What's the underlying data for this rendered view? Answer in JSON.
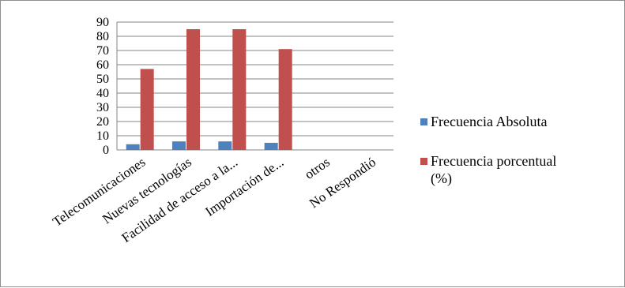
{
  "chart_data": {
    "type": "bar",
    "categories": [
      "Telecomunicaciones",
      "Nuevas tecnologías",
      "Facilidad de acceso a la...",
      "Importación de...",
      "otros",
      "No Respondió"
    ],
    "series": [
      {
        "name": "Frecuencia Absoluta",
        "color": "#4f81bd",
        "values": [
          4,
          6,
          6,
          5,
          0,
          0
        ]
      },
      {
        "name": "Frecuencia porcentual (%)",
        "color": "#c0504d",
        "values": [
          57,
          85,
          85,
          71,
          0,
          0
        ]
      }
    ],
    "ylim": [
      0,
      90
    ],
    "yticks": [
      0,
      10,
      20,
      30,
      40,
      50,
      60,
      70,
      80,
      90
    ],
    "grid": true,
    "legend_position": "right",
    "title": "",
    "xlabel": "",
    "ylabel": ""
  }
}
